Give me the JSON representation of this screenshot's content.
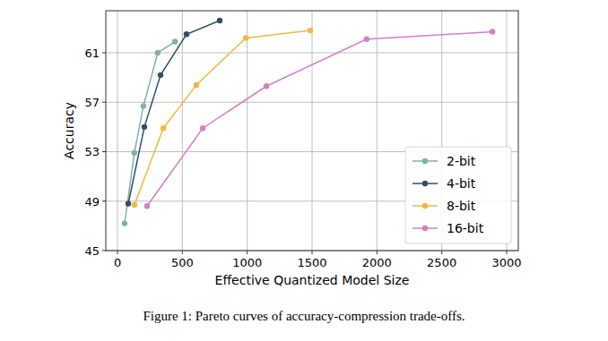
{
  "chart_data": {
    "type": "line",
    "caption": "Figure 1: Pareto curves of accuracy-compression trade-offs.",
    "x_label": "Effective Quantized Model Size",
    "y_label": "Accuracy",
    "xlim": [
      -90,
      3090
    ],
    "ylim": [
      45,
      64.4
    ],
    "xticks": [
      0,
      500,
      1000,
      1500,
      2000,
      2500,
      3000
    ],
    "yticks": [
      45,
      49,
      53,
      57,
      61
    ],
    "grid": true,
    "legend": "lower right",
    "marker": "circle",
    "series": [
      {
        "name": "2-bit",
        "color": "#7fb39f",
        "x": [
          55,
          130,
          200,
          310,
          443
        ],
        "values": [
          47.2,
          52.9,
          56.7,
          61.0,
          61.9
        ]
      },
      {
        "name": "4-bit",
        "color": "#2d4f6c",
        "x": [
          83,
          207,
          332,
          532,
          788
        ],
        "values": [
          48.8,
          55.0,
          59.2,
          62.5,
          63.6
        ]
      },
      {
        "name": "8-bit",
        "color": "#f2b93f",
        "x": [
          131,
          353,
          608,
          989,
          1487
        ],
        "values": [
          48.7,
          54.9,
          58.4,
          62.2,
          62.8
        ]
      },
      {
        "name": "16-bit",
        "color": "#d57fc8",
        "x": [
          228,
          657,
          1148,
          1920,
          2890
        ],
        "values": [
          48.6,
          54.9,
          58.3,
          62.1,
          62.7
        ]
      }
    ]
  }
}
